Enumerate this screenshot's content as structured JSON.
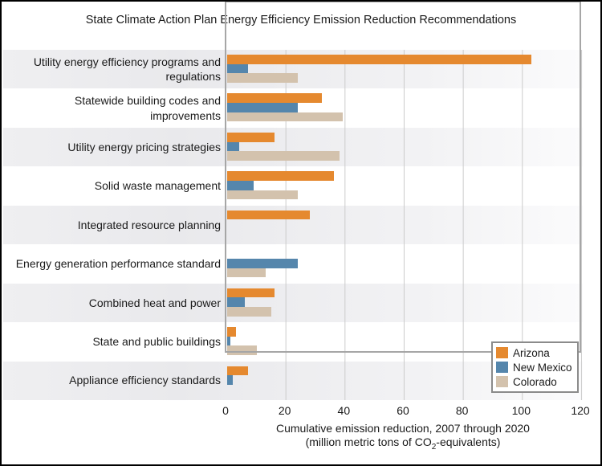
{
  "title": "State Climate Action Plan Energy Efficiency Emission Reduction Recommendations",
  "chart_data": {
    "type": "bar",
    "orientation": "horizontal",
    "title": "State Climate Action Plan Energy Efficiency Emission Reduction Recommendations",
    "categories": [
      "Utility energy efficiency programs and regulations",
      "Statewide building codes and improvements",
      "Utility energy pricing strategies",
      "Solid waste management",
      "Integrated resource planning",
      "Energy generation performance standard",
      "Combined heat and power",
      "State and public buildings",
      "Appliance efficiency standards"
    ],
    "series": [
      {
        "name": "Arizona",
        "color": "#E5892F",
        "values": [
          103,
          32,
          16,
          36,
          28,
          0,
          16,
          3,
          7
        ]
      },
      {
        "name": "New Mexico",
        "color": "#5586AC",
        "values": [
          7,
          24,
          4,
          9,
          0,
          24,
          6,
          1,
          2
        ]
      },
      {
        "name": "Colorado",
        "color": "#D3C2AD",
        "values": [
          24,
          39,
          38,
          24,
          0,
          13,
          15,
          10,
          0
        ]
      }
    ],
    "xlim": [
      0,
      120
    ],
    "xticks": [
      "0",
      "20",
      "40",
      "60",
      "80",
      "100",
      "120"
    ],
    "xlabel_line1": "Cumulative emission reduction, 2007 through 2020",
    "xlabel_line2_pre": "(million metric tons of CO",
    "xlabel_line2_sub": "2",
    "xlabel_line2_post": "-equivalents)",
    "grid": "vertical",
    "legend_position": "bottom-right",
    "band_color": "#e9e9ec",
    "gridline_color": "#cbcbcb"
  }
}
